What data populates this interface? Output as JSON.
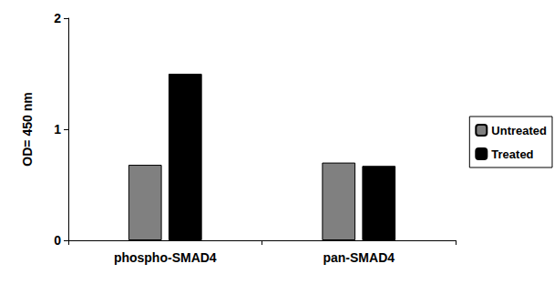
{
  "chart_data": {
    "type": "bar",
    "y_label": "OD= 450 nm",
    "categories": [
      "phospho-SMAD4",
      "pan-SMAD4"
    ],
    "series": [
      {
        "name": "Untreated",
        "color": "#808080",
        "values": [
          0.68,
          0.7
        ]
      },
      {
        "name": "Treated",
        "color": "#000000",
        "values": [
          1.5,
          0.67
        ]
      }
    ],
    "ylim": [
      0,
      2
    ],
    "yticks": [
      0,
      1,
      2
    ],
    "grid": false,
    "legend": "right"
  }
}
